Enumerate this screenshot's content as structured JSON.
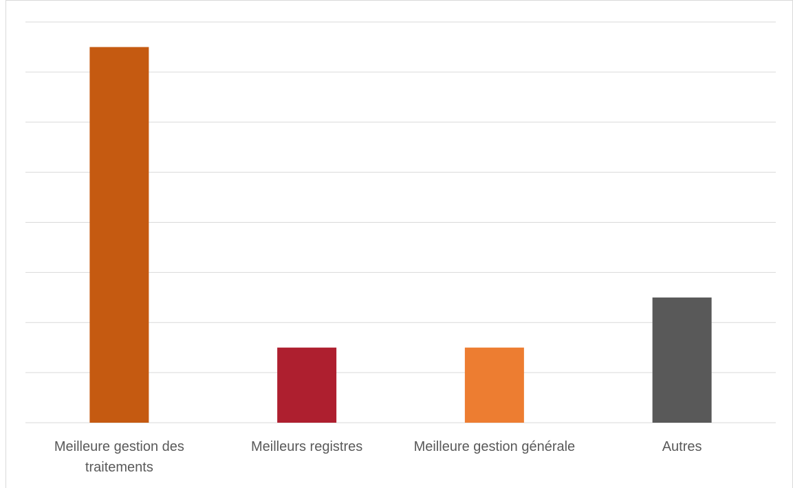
{
  "chart_data": {
    "type": "bar",
    "categories": [
      "Meilleure gestion des traitements",
      "Meilleurs registres",
      "Meilleure gestion générale",
      "Autres"
    ],
    "values": [
      7.5,
      1.5,
      1.5,
      2.5
    ],
    "colors": [
      "#c55a11",
      "#ae1f2f",
      "#ed7d31",
      "#595959"
    ],
    "ylim": [
      0,
      8
    ],
    "yticks": [
      0,
      1,
      2,
      3,
      4,
      5,
      6,
      7,
      8
    ],
    "grid": true
  }
}
